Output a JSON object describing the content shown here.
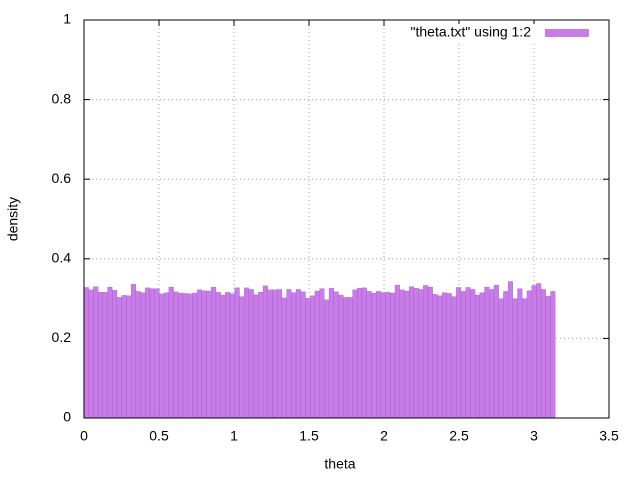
{
  "chart_data": {
    "type": "histogram",
    "xlabel": "theta",
    "ylabel": "density",
    "bins": [
      0,
      0.0314,
      0.0628,
      0.0942,
      0.1257,
      0.1571,
      0.1885,
      0.2199,
      0.2513,
      0.2827,
      0.3142,
      0.3456,
      0.377,
      0.4084,
      0.4398,
      0.4712,
      0.5027,
      0.5341,
      0.5655,
      0.5969,
      0.6283,
      0.6597,
      0.6912,
      0.7226,
      0.754,
      0.7854,
      0.8168,
      0.8482,
      0.8796,
      0.9111,
      0.9425,
      0.9739,
      1.0053,
      1.0367,
      1.0681,
      1.0996,
      1.131,
      1.1624,
      1.1938,
      1.2252,
      1.2566,
      1.2881,
      1.3195,
      1.3509,
      1.3823,
      1.4137,
      1.4451,
      1.4765,
      1.508,
      1.5394,
      1.5708,
      1.6022,
      1.6336,
      1.665,
      1.6965,
      1.7279,
      1.7593,
      1.7907,
      1.8221,
      1.8535,
      1.885,
      1.9164,
      1.9478,
      1.9792,
      2.0106,
      2.042,
      2.0735,
      2.1049,
      2.1363,
      2.1677,
      2.1991,
      2.2305,
      2.2619,
      2.2934,
      2.3248,
      2.3562,
      2.3876,
      2.419,
      2.4504,
      2.4819,
      2.5133,
      2.5447,
      2.5761,
      2.6075,
      2.6389,
      2.6704,
      2.7018,
      2.7332,
      2.7646,
      2.796,
      2.8274,
      2.8588,
      2.8903,
      2.9217,
      2.9531,
      2.9845,
      3.0159,
      3.0473,
      3.0788,
      3.1102,
      3.1416
    ],
    "series": [
      {
        "name": "\"theta.txt\" using 1:2",
        "color": "#c77ce8",
        "values": [
          0.328,
          0.322,
          0.33,
          0.316,
          0.316,
          0.329,
          0.321,
          0.303,
          0.308,
          0.307,
          0.336,
          0.318,
          0.315,
          0.327,
          0.325,
          0.325,
          0.312,
          0.315,
          0.329,
          0.317,
          0.314,
          0.313,
          0.312,
          0.314,
          0.322,
          0.32,
          0.319,
          0.329,
          0.316,
          0.309,
          0.316,
          0.312,
          0.327,
          0.305,
          0.327,
          0.323,
          0.31,
          0.316,
          0.332,
          0.322,
          0.322,
          0.323,
          0.302,
          0.323,
          0.315,
          0.323,
          0.317,
          0.301,
          0.307,
          0.319,
          0.325,
          0.297,
          0.326,
          0.317,
          0.309,
          0.303,
          0.303,
          0.322,
          0.326,
          0.327,
          0.318,
          0.314,
          0.318,
          0.315,
          0.316,
          0.314,
          0.334,
          0.322,
          0.319,
          0.33,
          0.326,
          0.323,
          0.333,
          0.329,
          0.311,
          0.307,
          0.315,
          0.313,
          0.305,
          0.328,
          0.318,
          0.328,
          0.323,
          0.309,
          0.315,
          0.329,
          0.323,
          0.334,
          0.3,
          0.318,
          0.343,
          0.3,
          0.325,
          0.3,
          0.32,
          0.333,
          0.338,
          0.323,
          0.306,
          0.318
        ]
      }
    ],
    "xlim": [
      0,
      3.5
    ],
    "xticks": [
      0,
      0.5,
      1,
      1.5,
      2,
      2.5,
      3,
      3.5
    ],
    "ylim": [
      0,
      1
    ],
    "yticks": [
      0,
      0.2,
      0.4,
      0.6,
      0.8,
      1
    ],
    "grid": true,
    "legend": "top-right"
  }
}
